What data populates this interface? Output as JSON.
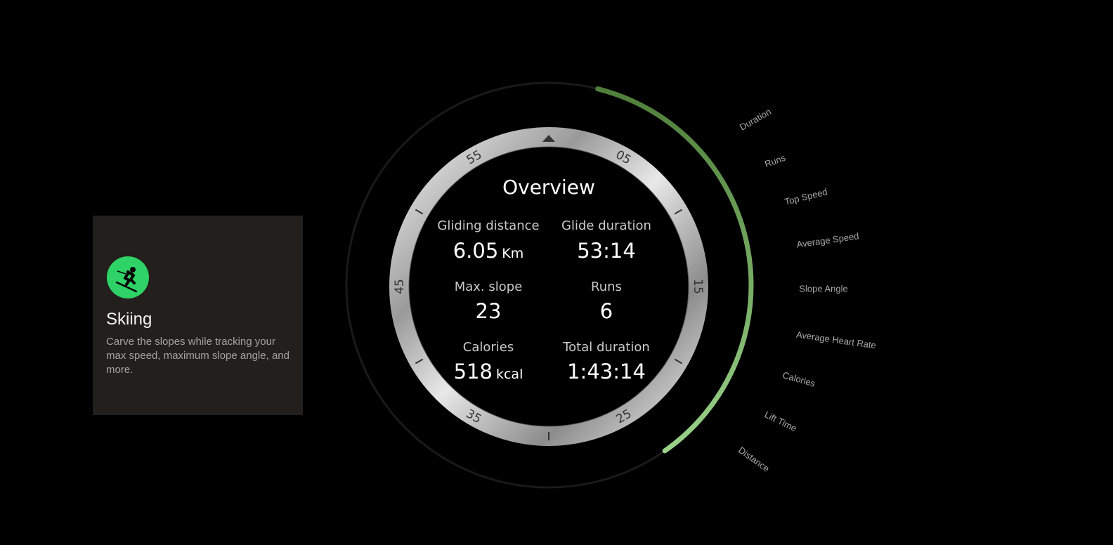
{
  "card": {
    "icon": "skier-icon",
    "title": "Skiing",
    "description": "Carve the slopes while tracking your max speed, maximum slope angle, and more."
  },
  "watch": {
    "title": "Overview",
    "bezel_numerals": [
      "05",
      "15",
      "25",
      "35",
      "45",
      "55"
    ],
    "stats": [
      {
        "label": "Gliding distance",
        "value": "6.05",
        "unit": "Km"
      },
      {
        "label": "Glide duration",
        "value": "53:14",
        "unit": ""
      },
      {
        "label": "Max. slope",
        "value": "23",
        "unit": ""
      },
      {
        "label": "Runs",
        "value": "6",
        "unit": ""
      },
      {
        "label": "Calories",
        "value": "518",
        "unit": "kcal"
      },
      {
        "label": "Total duration",
        "value": "1:43:14",
        "unit": ""
      }
    ]
  },
  "metrics": [
    "Duration",
    "Runs",
    "Top Speed",
    "Average Speed",
    "Slope Angle",
    "Average Heart Rate",
    "Calories",
    "Lift Time",
    "Distance"
  ],
  "colors": {
    "accent": "#2ed266",
    "arc_start": "#4f7f3a",
    "arc_end": "#9ad28a",
    "card_bg": "#221f1c"
  }
}
